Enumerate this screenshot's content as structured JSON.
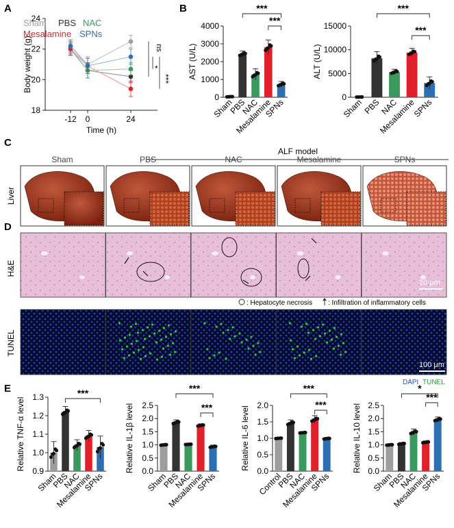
{
  "panels": {
    "A": "A",
    "B": "B",
    "C": "C",
    "D": "D",
    "E": "E"
  },
  "colors": {
    "sham": "#9e9e9e",
    "pbs": "#333333",
    "nac": "#3a9a5c",
    "mesalamine": "#e2202c",
    "spns": "#2d6fb3",
    "tunel_green": "#2ecc40",
    "dapi_blue": "#1e4fc8",
    "he_pink": "#e7b9d6"
  },
  "panel_c": {
    "group_title": "ALF model",
    "row_label": "Liver",
    "columns": [
      "Sham",
      "PBS",
      "NAC",
      "Mesalamine",
      "SPNs"
    ]
  },
  "panel_d": {
    "row_he": "H&E",
    "row_tunel": "TUNEL",
    "scale_he": "20 μm",
    "scale_tunel": "100 μm",
    "legend_necrosis": ": Hepatocyte necrosis",
    "legend_infiltration": ": Infiltration of inflammatory cells",
    "legend_dapi": "DAPI",
    "legend_tunel": "TUNEL"
  },
  "chart_data": [
    {
      "id": "A",
      "type": "line",
      "xlabel": "Time (h)",
      "ylabel": "Body weight (g)",
      "x": [
        -12,
        0,
        24
      ],
      "ylim": [
        18,
        24
      ],
      "yticks": [
        18,
        20,
        22,
        24
      ],
      "legend": [
        "Sham",
        "PBS",
        "NAC",
        "Mesalamine",
        "SPNs"
      ],
      "series": [
        {
          "name": "Sham",
          "values": [
            22.2,
            21.0,
            22.5
          ],
          "err": [
            0.4,
            0.5,
            0.4
          ]
        },
        {
          "name": "PBS",
          "values": [
            22.0,
            20.6,
            20.2
          ],
          "err": [
            0.4,
            0.5,
            0.4
          ]
        },
        {
          "name": "NAC",
          "values": [
            22.1,
            20.6,
            20.7
          ],
          "err": [
            0.4,
            0.5,
            0.4
          ]
        },
        {
          "name": "Mesalamine",
          "values": [
            22.0,
            20.9,
            19.4
          ],
          "err": [
            0.4,
            0.5,
            0.5
          ]
        },
        {
          "name": "SPNs",
          "values": [
            22.2,
            20.9,
            21.5
          ],
          "err": [
            0.4,
            0.5,
            0.5
          ]
        }
      ],
      "significance": [
        "ns",
        "*",
        "***"
      ]
    },
    {
      "id": "B1",
      "type": "bar",
      "ylabel": "AST (U/L)",
      "categories": [
        "Sham",
        "PBS",
        "NAC",
        "Mesalamine",
        "SPNs"
      ],
      "values": [
        30,
        2420,
        1280,
        2800,
        720
      ],
      "err": [
        20,
        180,
        320,
        420,
        170
      ],
      "ylim": [
        0,
        4000
      ],
      "yticks": [
        0,
        1000,
        2000,
        3000,
        4000
      ],
      "significance": [
        "***",
        "***"
      ]
    },
    {
      "id": "B2",
      "type": "bar",
      "ylabel": "ALT (U/L)",
      "categories": [
        "Sham",
        "PBS",
        "NAC",
        "Mesalamine",
        "SPNs"
      ],
      "values": [
        50,
        8200,
        5300,
        9400,
        3000
      ],
      "err": [
        30,
        1400,
        600,
        900,
        1300
      ],
      "ylim": [
        0,
        15000
      ],
      "yticks": [
        0,
        5000,
        10000,
        15000
      ],
      "significance": [
        "***",
        "***"
      ]
    },
    {
      "id": "E1",
      "type": "bar",
      "ylabel": "Relative TNF-α level",
      "categories": [
        "Sham",
        "PBS",
        "NAC",
        "Mesalamine",
        "SPNs"
      ],
      "values": [
        1.0,
        1.22,
        1.04,
        1.09,
        1.03
      ],
      "err": [
        0.06,
        0.03,
        0.03,
        0.03,
        0.06
      ],
      "ylim": [
        0.9,
        1.3
      ],
      "yticks": [
        0.9,
        1.0,
        1.1,
        1.2,
        1.3
      ],
      "significance": [
        "***"
      ]
    },
    {
      "id": "E2",
      "type": "bar",
      "ylabel": "Relative IL-1β level",
      "categories": [
        "Sham",
        "PBS",
        "NAC",
        "Mesalamine",
        "SPNs"
      ],
      "values": [
        1.0,
        1.85,
        1.02,
        1.74,
        0.93
      ],
      "err": [
        0.03,
        0.1,
        0.02,
        0.06,
        0.06
      ],
      "ylim": [
        0,
        2.5
      ],
      "yticks": [
        0.0,
        0.5,
        1.0,
        1.5,
        2.0,
        2.5
      ],
      "significance": [
        "***",
        "***"
      ]
    },
    {
      "id": "E3",
      "type": "bar",
      "ylabel": "Relative IL-6 level",
      "categories": [
        "Control",
        "PBS",
        "NAC",
        "Mesalamine",
        "SPNs"
      ],
      "values": [
        1.0,
        1.46,
        1.17,
        1.57,
        0.99
      ],
      "err": [
        0.02,
        0.1,
        0.02,
        0.12,
        0.03
      ],
      "ylim": [
        0,
        2.0
      ],
      "yticks": [
        0.0,
        0.5,
        1.0,
        1.5,
        2.0
      ],
      "significance": [
        "***",
        "***"
      ]
    },
    {
      "id": "E4",
      "type": "bar",
      "ylabel": "Relative IL-10 level",
      "categories": [
        "Sham",
        "PBS",
        "NAC",
        "Mesalamine",
        "SPNs"
      ],
      "values": [
        1.0,
        1.04,
        1.48,
        1.1,
        1.96
      ],
      "err": [
        0.03,
        0.05,
        0.12,
        0.05,
        0.1
      ],
      "ylim": [
        0,
        2.5
      ],
      "yticks": [
        0.0,
        0.5,
        1.0,
        1.5,
        2.0,
        2.5
      ],
      "significance": [
        "*",
        "***"
      ]
    }
  ]
}
